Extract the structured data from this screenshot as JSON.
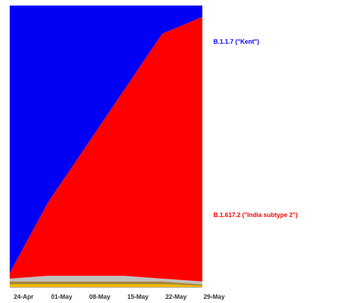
{
  "chart_data": {
    "type": "area",
    "stacked": true,
    "normalized": true,
    "x": [
      "24-Apr",
      "01-May",
      "08-May",
      "15-May",
      "22-May",
      "29-May"
    ],
    "series": [
      {
        "name": "B.1.1.7 (\"Kent\")",
        "color": "#0000f5",
        "values": [
          0.95,
          0.7,
          0.5,
          0.3,
          0.1,
          0.04
        ]
      },
      {
        "name": "B.1.617.2 (\"India subtype 2\")",
        "color": "#ff0000",
        "values": [
          0.02,
          0.26,
          0.46,
          0.66,
          0.87,
          0.94
        ]
      },
      {
        "name": "",
        "color": "#c0c0c0",
        "values": [
          0.01,
          0.02,
          0.02,
          0.02,
          0.01,
          0.01
        ]
      },
      {
        "name": "",
        "color": "#a88a3a",
        "values": [
          0.01,
          0.01,
          0.01,
          0.01,
          0.01,
          0.005
        ]
      },
      {
        "name": "",
        "color": "#f5b800",
        "values": [
          0.01,
          0.01,
          0.01,
          0.01,
          0.01,
          0.005
        ]
      }
    ],
    "ylim": [
      0,
      1
    ],
    "grid": false,
    "legend": "right"
  }
}
